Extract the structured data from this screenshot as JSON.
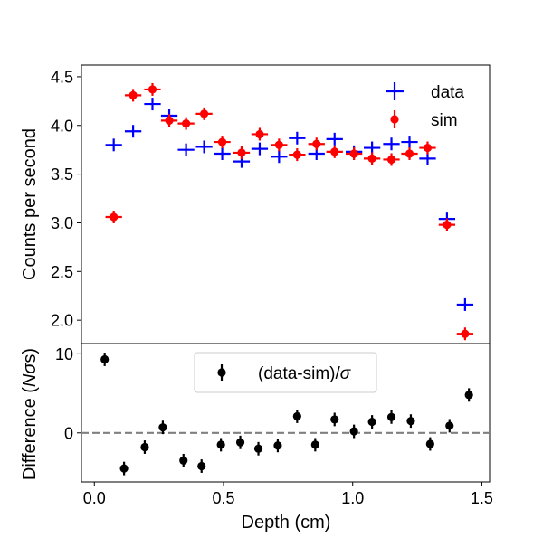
{
  "chart_data": [
    {
      "type": "scatter",
      "panel": "top",
      "title": "",
      "xlabel": "",
      "ylabel": "Counts per second",
      "xlim": [
        -0.05,
        1.53
      ],
      "ylim": [
        1.76,
        4.62
      ],
      "yticks": [
        2.0,
        2.5,
        3.0,
        3.5,
        4.0,
        4.5
      ],
      "ytick_labels": [
        "2.0",
        "2.5",
        "3.0",
        "3.5",
        "4.0",
        "4.5"
      ],
      "legend_position": "top-right",
      "series": [
        {
          "name": "data",
          "color": "#0000ff",
          "marker": "plus",
          "x": [
            0.075,
            0.15,
            0.225,
            0.29,
            0.355,
            0.425,
            0.495,
            0.57,
            0.64,
            0.715,
            0.785,
            0.86,
            0.93,
            1.005,
            1.075,
            1.15,
            1.22,
            1.29,
            1.365,
            1.435
          ],
          "values": [
            3.8,
            3.94,
            4.22,
            4.1,
            3.75,
            3.78,
            3.71,
            3.63,
            3.76,
            3.68,
            3.87,
            3.71,
            3.86,
            3.73,
            3.77,
            3.81,
            3.83,
            3.66,
            3.04,
            2.16
          ],
          "xerr": 0.032,
          "yerr": 0.045
        },
        {
          "name": "sim",
          "color": "#ff0000",
          "marker": "circle",
          "x": [
            0.075,
            0.15,
            0.225,
            0.29,
            0.355,
            0.425,
            0.495,
            0.57,
            0.64,
            0.715,
            0.785,
            0.86,
            0.93,
            1.005,
            1.075,
            1.15,
            1.22,
            1.29,
            1.365,
            1.435
          ],
          "values": [
            3.06,
            4.31,
            4.37,
            4.05,
            4.02,
            4.12,
            3.83,
            3.72,
            3.91,
            3.8,
            3.7,
            3.81,
            3.73,
            3.71,
            3.66,
            3.65,
            3.71,
            3.77,
            2.98,
            1.86
          ],
          "xerr": 0.032,
          "yerr": 0.06
        }
      ]
    },
    {
      "type": "scatter",
      "panel": "bottom",
      "title": "",
      "xlabel": "Depth (cm)",
      "ylabel": "Difference (Nσs)",
      "ylabel_parts": {
        "prefix": "Difference (",
        "italic": "Nσ",
        "suffix": "s)"
      },
      "xlim": [
        -0.05,
        1.53
      ],
      "ylim": [
        -6.2,
        11.3
      ],
      "xticks": [
        0.0,
        0.5,
        1.0,
        1.5
      ],
      "xtick_labels": [
        "0.0",
        "0.5",
        "1.0",
        "1.5"
      ],
      "yticks": [
        0,
        10
      ],
      "ytick_labels": [
        "0",
        "10"
      ],
      "reference_line": {
        "y": 0,
        "style": "dashed",
        "color": "#808080"
      },
      "legend_position": "top-center",
      "series": [
        {
          "name": "(data-sim)/σ",
          "legend_parts": {
            "prefix": "(data-sim)/",
            "italic": "σ"
          },
          "color": "#000000",
          "marker": "circle",
          "x": [
            0.04,
            0.115,
            0.195,
            0.265,
            0.345,
            0.415,
            0.49,
            0.565,
            0.635,
            0.71,
            0.785,
            0.855,
            0.93,
            1.005,
            1.075,
            1.15,
            1.225,
            1.3,
            1.375,
            1.45
          ],
          "values": [
            9.3,
            -4.5,
            -1.8,
            0.7,
            -3.5,
            -4.2,
            -1.5,
            -1.2,
            -2.0,
            -1.6,
            2.1,
            -1.5,
            1.7,
            0.2,
            1.4,
            2.0,
            1.5,
            -1.4,
            0.9,
            4.8
          ],
          "yerr": 0.85
        }
      ]
    }
  ]
}
